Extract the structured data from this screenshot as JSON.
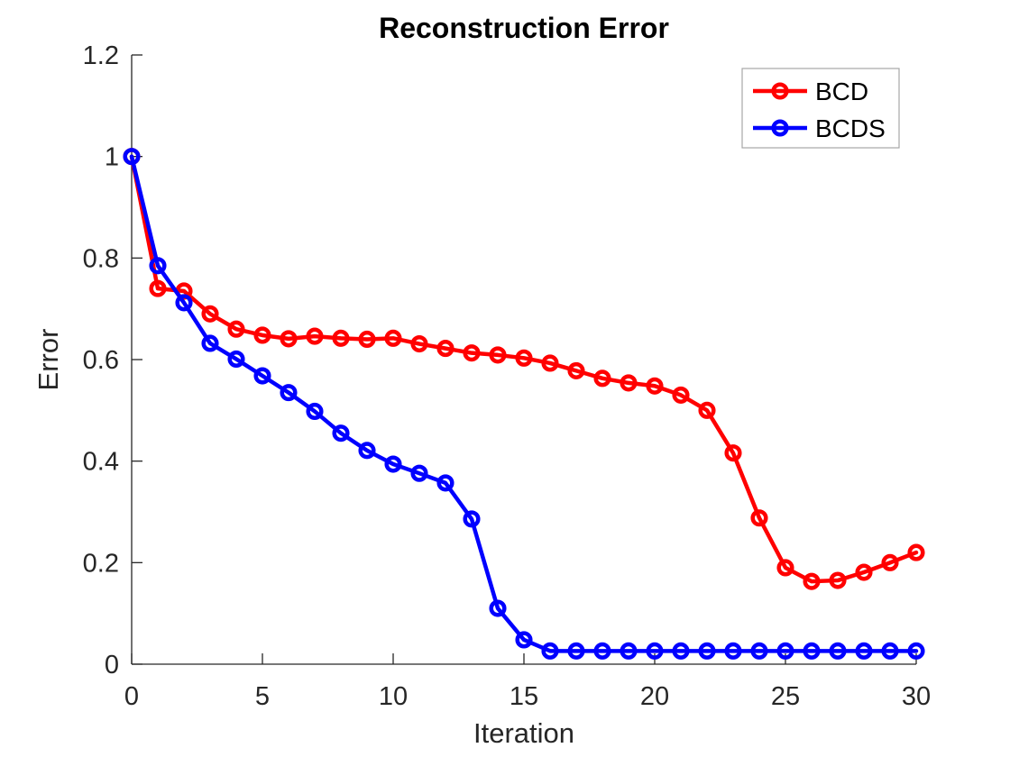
{
  "chart_data": {
    "type": "line",
    "title": "Reconstruction Error",
    "xlabel": "Iteration",
    "ylabel": "Error",
    "xlim": [
      0,
      30
    ],
    "ylim": [
      0,
      1.2
    ],
    "xticks": [
      0,
      5,
      10,
      15,
      20,
      25,
      30
    ],
    "xtick_labels": [
      "0",
      "5",
      "10",
      "15",
      "20",
      "25",
      "30"
    ],
    "yticks": [
      0,
      0.2,
      0.4,
      0.6,
      0.8,
      1,
      1.2
    ],
    "ytick_labels": [
      "0",
      "0.2",
      "0.4",
      "0.6",
      "0.8",
      "1",
      "1.2"
    ],
    "grid": false,
    "legend": {
      "position": "top-right",
      "entries": [
        {
          "label": "BCD",
          "color": "#ff0000"
        },
        {
          "label": "BCDS",
          "color": "#0000ff"
        }
      ]
    },
    "x": [
      0,
      1,
      2,
      3,
      4,
      5,
      6,
      7,
      8,
      9,
      10,
      11,
      12,
      13,
      14,
      15,
      16,
      17,
      18,
      19,
      20,
      21,
      22,
      23,
      24,
      25,
      26,
      27,
      28,
      29,
      30
    ],
    "series": [
      {
        "name": "BCD",
        "color": "#ff0000",
        "marker": "circle",
        "values": [
          1.0,
          0.74,
          0.735,
          0.69,
          0.66,
          0.648,
          0.641,
          0.646,
          0.642,
          0.64,
          0.642,
          0.631,
          0.622,
          0.613,
          0.609,
          0.603,
          0.593,
          0.578,
          0.563,
          0.554,
          0.548,
          0.53,
          0.5,
          0.416,
          0.288,
          0.19,
          0.163,
          0.165,
          0.181,
          0.2,
          0.22
        ]
      },
      {
        "name": "BCDS",
        "color": "#0000ff",
        "marker": "circle",
        "values": [
          1.0,
          0.785,
          0.712,
          0.632,
          0.601,
          0.568,
          0.535,
          0.498,
          0.455,
          0.421,
          0.394,
          0.376,
          0.357,
          0.286,
          0.11,
          0.048,
          0.026,
          0.026,
          0.026,
          0.026,
          0.026,
          0.026,
          0.026,
          0.026,
          0.026,
          0.026,
          0.026,
          0.026,
          0.026,
          0.026,
          0.026
        ]
      }
    ],
    "colors": {
      "axis": "#262626",
      "tick_label": "#262626",
      "title": "#000000",
      "legend_border": "#a6a6a6",
      "background": "#ffffff"
    }
  }
}
